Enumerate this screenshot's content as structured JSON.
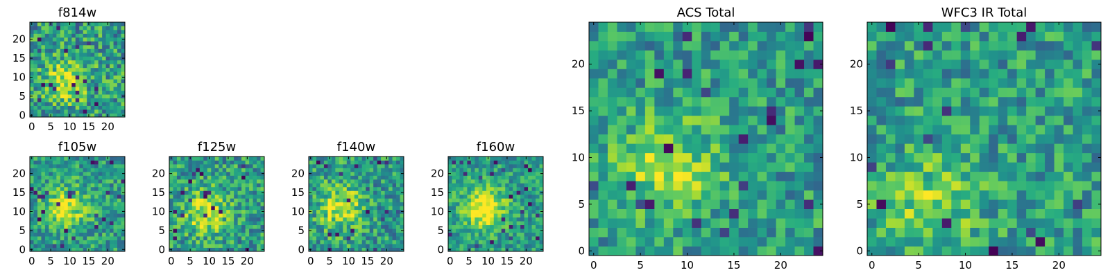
{
  "chart_data": [
    {
      "type": "heatmap",
      "title": "f814w",
      "grid_size": 25,
      "xticks": [
        0,
        5,
        10,
        15,
        20
      ],
      "yticks": [
        0,
        5,
        10,
        15,
        20
      ],
      "xlim": [
        0,
        24
      ],
      "ylim": [
        0,
        24
      ],
      "colormap": "viridis",
      "pattern": "central",
      "center": [
        9,
        9
      ],
      "blob_strength": 0.35,
      "noise": 0.55,
      "seed": 11
    },
    {
      "type": "heatmap",
      "title": "f105w",
      "grid_size": 25,
      "xticks": [
        0,
        5,
        10,
        15,
        20
      ],
      "yticks": [
        0,
        5,
        10,
        15,
        20
      ],
      "xlim": [
        0,
        24
      ],
      "ylim": [
        0,
        24
      ],
      "colormap": "viridis",
      "pattern": "central",
      "center": [
        9,
        11
      ],
      "blob_strength": 0.4,
      "noise": 0.45,
      "seed": 23
    },
    {
      "type": "heatmap",
      "title": "f125w",
      "grid_size": 25,
      "xticks": [
        0,
        5,
        10,
        15,
        20
      ],
      "yticks": [
        0,
        5,
        10,
        15,
        20
      ],
      "xlim": [
        0,
        24
      ],
      "ylim": [
        0,
        24
      ],
      "colormap": "viridis",
      "pattern": "central",
      "center": [
        9,
        10
      ],
      "blob_strength": 0.4,
      "noise": 0.5,
      "seed": 37
    },
    {
      "type": "heatmap",
      "title": "f140w",
      "grid_size": 25,
      "xticks": [
        0,
        5,
        10,
        15,
        20
      ],
      "yticks": [
        0,
        5,
        10,
        15,
        20
      ],
      "xlim": [
        0,
        24
      ],
      "ylim": [
        0,
        24
      ],
      "colormap": "viridis",
      "pattern": "central",
      "center": [
        8,
        11
      ],
      "blob_strength": 0.4,
      "noise": 0.5,
      "seed": 53
    },
    {
      "type": "heatmap",
      "title": "f160w",
      "grid_size": 25,
      "xticks": [
        0,
        5,
        10,
        15,
        20
      ],
      "yticks": [
        0,
        5,
        10,
        15,
        20
      ],
      "xlim": [
        0,
        24
      ],
      "ylim": [
        0,
        24
      ],
      "colormap": "viridis",
      "pattern": "central",
      "center": [
        9,
        11
      ],
      "blob_strength": 0.5,
      "noise": 0.4,
      "seed": 71
    },
    {
      "type": "heatmap",
      "title": "ACS Total",
      "grid_size": 25,
      "xticks": [
        0,
        5,
        10,
        15,
        20
      ],
      "yticks": [
        0,
        5,
        10,
        15,
        20
      ],
      "xlim": [
        0,
        24
      ],
      "ylim": [
        0,
        24
      ],
      "colormap": "viridis",
      "pattern": "central",
      "center": [
        8,
        9
      ],
      "blob_strength": 0.3,
      "noise": 0.45,
      "seed": 89
    },
    {
      "type": "heatmap",
      "title": "WFC3 IR Total",
      "grid_size": 25,
      "xticks": [
        0,
        5,
        10,
        15,
        20
      ],
      "yticks": [
        0,
        5,
        10,
        15,
        20
      ],
      "xlim": [
        0,
        24
      ],
      "ylim": [
        0,
        24
      ],
      "colormap": "viridis",
      "pattern": "central",
      "center": [
        6,
        5
      ],
      "blob_strength": 0.25,
      "noise": 0.45,
      "seed": 97
    }
  ]
}
